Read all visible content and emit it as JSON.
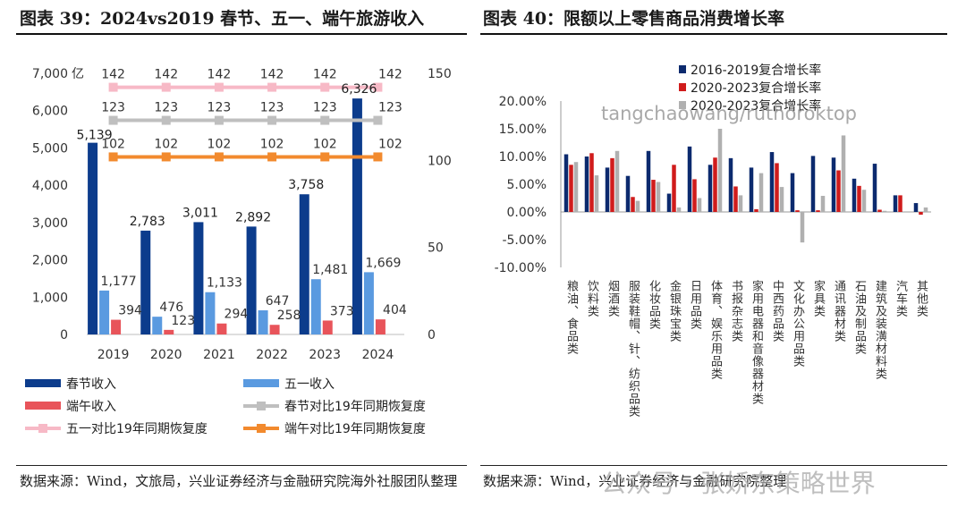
{
  "page": {
    "title_left": "图表 39：2024vs2019 春节、五一、端午旅游收入",
    "title_right": "图表 40：限额以上零售商品消费增长率",
    "source_left": "数据来源：Wind，文旅局，兴业证券经济与金融研究院海外社服团队整理",
    "source_right": "数据来源：Wind，兴业证券经济与金融研究院整理",
    "watermark_top": "tangchaowang/ruthoroktop",
    "watermark_bottom": "公众号 · 张娇东策略世界"
  },
  "chart_data": [
    {
      "type": "bar",
      "title": "",
      "categories": [
        "2019",
        "2020",
        "2021",
        "2022",
        "2023",
        "2024"
      ],
      "y_left": {
        "range": [
          0,
          7000
        ],
        "ticks": [
          "0",
          "1,000",
          "2,000",
          "3,000",
          "4,000",
          "5,000",
          "6,000",
          "7,000"
        ],
        "unit": "亿"
      },
      "y_right": {
        "range": [
          0,
          150
        ],
        "ticks": [
          "0",
          "50",
          "100",
          "150"
        ]
      },
      "bar_series": [
        {
          "name": "春节收入",
          "color": "#0c3c8c",
          "values": [
            5139,
            2783,
            3011,
            2892,
            3758,
            6326
          ],
          "labels": [
            "5,139",
            "2,783",
            "3,011",
            "2,892",
            "3,758",
            "6,326"
          ]
        },
        {
          "name": "五一收入",
          "color": "#5a9ae0",
          "values": [
            1177,
            476,
            1133,
            647,
            1481,
            1669
          ],
          "labels": [
            "1,177",
            "476",
            "1,133",
            "647",
            "1,481",
            "1,669"
          ]
        },
        {
          "name": "端午收入",
          "color": "#e8545a",
          "values": [
            394,
            123,
            294,
            258,
            373,
            404
          ],
          "labels": [
            "394",
            "123",
            "294",
            "258",
            "373",
            "404"
          ]
        }
      ],
      "line_series": [
        {
          "name": "春节对比19年同期恢复度",
          "color": "#bfbfbf",
          "values": [
            123,
            123,
            123,
            123,
            123,
            123
          ],
          "labels": [
            "123",
            "123",
            "123",
            "123",
            "123",
            "123"
          ]
        },
        {
          "name": "五一对比19年同期恢复度",
          "color": "#f7b9c6",
          "values": [
            142,
            142,
            142,
            142,
            142,
            142
          ],
          "labels": [
            "142",
            "142",
            "142",
            "142",
            "142",
            "142"
          ]
        },
        {
          "name": "端午对比19年同期恢复度",
          "color": "#f28a2e",
          "values": [
            102,
            102,
            102,
            102,
            102,
            102
          ],
          "labels": [
            "102",
            "102",
            "102",
            "102",
            "102",
            "102"
          ]
        }
      ],
      "legend_position": "bottom"
    },
    {
      "type": "bar",
      "title": "",
      "categories": [
        "粮油、食品类",
        "饮料类",
        "烟酒类",
        "服装鞋帽、针、纺织品类",
        "化妆品类",
        "金银珠宝类",
        "日用品类",
        "体育、娱乐用品类",
        "书报杂志类",
        "家用电器和音像器材类",
        "中西药品类",
        "文化办公用品类",
        "家具类",
        "通讯器材类",
        "石油及制品类",
        "建筑及装潢材料类",
        "汽车类",
        "其他类"
      ],
      "y_range": [
        -10,
        20
      ],
      "y_ticks": [
        "-10.00%",
        "-5.00%",
        "0.00%",
        "5.00%",
        "10.00%",
        "15.00%",
        "20.00%"
      ],
      "series": [
        {
          "name": "2016-2019复合增长率",
          "color": "#0c2a6e",
          "values": [
            10.4,
            10.0,
            8.0,
            6.5,
            11.0,
            3.3,
            11.8,
            8.5,
            9.7,
            8.0,
            10.8,
            7.0,
            10.1,
            9.8,
            6.0,
            8.7,
            3.0,
            1.6
          ]
        },
        {
          "name": "2020-2023复合增长率",
          "color": "#d01c1c",
          "values": [
            8.5,
            10.6,
            9.7,
            2.7,
            5.8,
            8.5,
            5.9,
            9.8,
            4.6,
            0.5,
            8.8,
            0.3,
            0.3,
            7.5,
            4.7,
            0.4,
            3.0,
            -0.5
          ]
        },
        {
          "name": "2020-2023复合增长率",
          "color": "#b0b0b0",
          "values": [
            9.0,
            6.6,
            11.0,
            2.0,
            5.4,
            0.8,
            2.5,
            15.0,
            3.0,
            7.0,
            4.5,
            -5.5,
            2.9,
            13.8,
            4.0,
            0.2,
            0.0,
            0.8
          ]
        }
      ],
      "legend_position": "top-right"
    }
  ]
}
